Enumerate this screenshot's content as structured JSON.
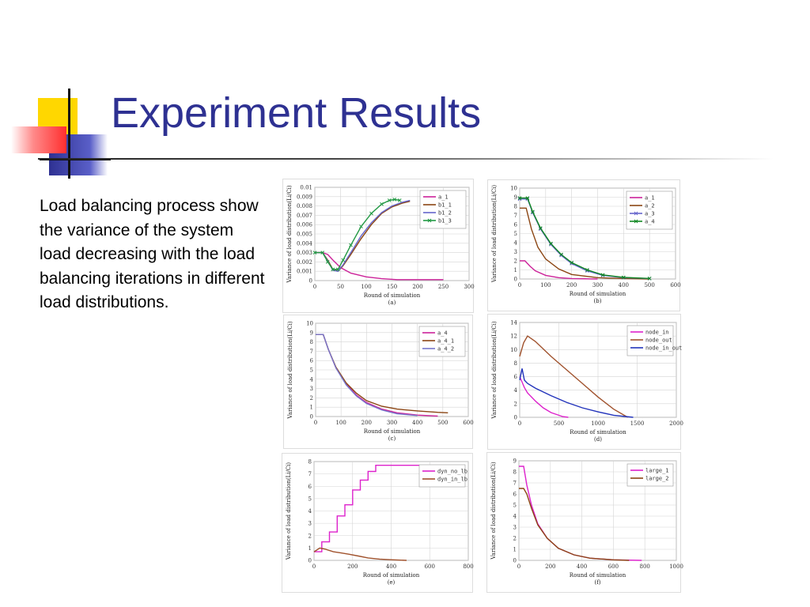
{
  "slide": {
    "title": "Experiment Results",
    "body": "Load balancing process show the variance of the system load decreasing with the load balancing iterations in different load distributions."
  },
  "colors": {
    "title": "#2e3192",
    "deco_yellow": "#ffd700",
    "deco_blue": "#2e3192",
    "deco_red": "#ff3b3b"
  },
  "chart_data": [
    {
      "type": "line",
      "label": "(a)",
      "xlabel": "Round of simulation",
      "ylabel": "Variance of load distribution(Li/Ci)",
      "xlim": [
        0,
        300
      ],
      "ylim": [
        0,
        0.01
      ],
      "xticks": [
        0,
        50,
        100,
        150,
        200,
        250,
        300
      ],
      "yticks": [
        0,
        0.001,
        0.002,
        0.003,
        0.004,
        0.005,
        0.006,
        0.007,
        0.008,
        0.009,
        0.01
      ],
      "ytick_labels": [
        "0",
        "0.001",
        "0.002",
        "0.003",
        "0.004",
        "0.005",
        "0.006",
        "0.007",
        "0.008",
        "0.009",
        "0.01"
      ],
      "grid": true,
      "legend_position": "top-right",
      "series": [
        {
          "name": "a_1",
          "color": "#cc2299",
          "marker": "none",
          "x": [
            0,
            15,
            25,
            35,
            50,
            70,
            100,
            130,
            160,
            200,
            250
          ],
          "y": [
            0.003,
            0.003,
            0.0028,
            0.0022,
            0.0014,
            0.0008,
            0.0004,
            0.0002,
            0.0001,
            0.0001,
            0.0001
          ]
        },
        {
          "name": "b1_1",
          "color": "#8b4513",
          "marker": "none",
          "x": [
            0,
            15,
            25,
            35,
            45,
            55,
            70,
            90,
            110,
            130,
            150,
            170,
            185
          ],
          "y": [
            0.003,
            0.003,
            0.0022,
            0.0012,
            0.001,
            0.0016,
            0.0028,
            0.0045,
            0.006,
            0.0072,
            0.0079,
            0.0083,
            0.0085
          ]
        },
        {
          "name": "b1_2",
          "color": "#6666cc",
          "marker": "none",
          "x": [
            0,
            15,
            25,
            35,
            45,
            55,
            70,
            90,
            110,
            130,
            150,
            170,
            185
          ],
          "y": [
            0.003,
            0.003,
            0.0021,
            0.0011,
            0.001,
            0.0017,
            0.003,
            0.0048,
            0.0062,
            0.0073,
            0.008,
            0.0084,
            0.0086
          ]
        },
        {
          "name": "b1_3",
          "color": "#229944",
          "marker": "x",
          "x": [
            0,
            15,
            25,
            35,
            45,
            55,
            70,
            90,
            110,
            130,
            145,
            155,
            165
          ],
          "y": [
            0.003,
            0.003,
            0.002,
            0.0012,
            0.0012,
            0.0022,
            0.0038,
            0.0058,
            0.0072,
            0.0082,
            0.0086,
            0.0087,
            0.0086
          ]
        }
      ]
    },
    {
      "type": "line",
      "label": "(b)",
      "xlabel": "Round of simulation",
      "ylabel": "Variance of load distribution(Li/Ci)",
      "xlim": [
        0,
        600
      ],
      "ylim": [
        0,
        10
      ],
      "xticks": [
        0,
        100,
        200,
        300,
        400,
        500,
        600
      ],
      "yticks": [
        0,
        1,
        2,
        3,
        4,
        5,
        6,
        7,
        8,
        9,
        10
      ],
      "grid": true,
      "legend_position": "top-right",
      "series": [
        {
          "name": "a_1",
          "color": "#cc2299",
          "marker": "none",
          "x": [
            0,
            20,
            40,
            60,
            100,
            150,
            200,
            300
          ],
          "y": [
            2,
            2,
            1.4,
            0.9,
            0.4,
            0.15,
            0.05,
            0
          ]
        },
        {
          "name": "a_2",
          "color": "#8b4513",
          "marker": "none",
          "x": [
            0,
            25,
            45,
            70,
            100,
            150,
            200,
            300,
            400,
            500
          ],
          "y": [
            7.8,
            7.8,
            5.5,
            3.5,
            2.2,
            1.1,
            0.5,
            0.15,
            0.05,
            0
          ]
        },
        {
          "name": "a_3",
          "color": "#6666cc",
          "marker": "x",
          "x": [
            0,
            30,
            50,
            80,
            120,
            160,
            200,
            260,
            320,
            400,
            500
          ],
          "y": [
            8.8,
            8.8,
            7.3,
            5.5,
            3.8,
            2.6,
            1.7,
            0.9,
            0.4,
            0.15,
            0.05
          ]
        },
        {
          "name": "a_4",
          "color": "#118822",
          "marker": "x",
          "x": [
            0,
            30,
            50,
            80,
            120,
            160,
            200,
            260,
            320,
            400,
            500
          ],
          "y": [
            8.9,
            8.9,
            7.4,
            5.6,
            3.9,
            2.7,
            1.8,
            1,
            0.45,
            0.18,
            0.06
          ]
        }
      ]
    },
    {
      "type": "line",
      "label": "(c)",
      "xlabel": "Round of simulation",
      "ylabel": "Variance of load distribution(Li/Ci)",
      "xlim": [
        0,
        600
      ],
      "ylim": [
        0,
        10
      ],
      "xticks": [
        0,
        100,
        200,
        300,
        400,
        500,
        600
      ],
      "yticks": [
        0,
        1,
        2,
        3,
        4,
        5,
        6,
        7,
        8,
        9,
        10
      ],
      "grid": true,
      "legend_position": "top-right",
      "series": [
        {
          "name": "a_4",
          "color": "#cc2299",
          "marker": "none",
          "x": [
            0,
            30,
            50,
            80,
            120,
            160,
            200,
            260,
            320,
            400,
            480
          ],
          "y": [
            8.8,
            8.8,
            7.2,
            5.2,
            3.5,
            2.3,
            1.5,
            0.8,
            0.4,
            0.15,
            0.05
          ]
        },
        {
          "name": "a_4_1",
          "color": "#8b4513",
          "marker": "none",
          "x": [
            0,
            30,
            50,
            80,
            120,
            160,
            200,
            260,
            320,
            400,
            480,
            520
          ],
          "y": [
            8.8,
            8.8,
            7.2,
            5.3,
            3.6,
            2.5,
            1.7,
            1.1,
            0.8,
            0.6,
            0.45,
            0.4
          ]
        },
        {
          "name": "a_4_2",
          "color": "#7777cc",
          "marker": "none",
          "x": [
            0,
            30,
            50,
            80,
            120,
            160,
            200,
            260,
            320,
            400
          ],
          "y": [
            8.8,
            8.8,
            7.2,
            5.2,
            3.4,
            2.2,
            1.4,
            0.7,
            0.3,
            0.1
          ]
        }
      ]
    },
    {
      "type": "line",
      "label": "(d)",
      "xlabel": "Round of simulation",
      "ylabel": "Variance of load distribution(Li/Ci)",
      "xlim": [
        0,
        2000
      ],
      "ylim": [
        0,
        14
      ],
      "xticks": [
        0,
        500,
        1000,
        1500,
        2000
      ],
      "yticks": [
        0,
        2,
        4,
        6,
        8,
        10,
        12,
        14
      ],
      "grid": true,
      "legend_position": "top-right",
      "series": [
        {
          "name": "node_in",
          "color": "#dd22cc",
          "marker": "none",
          "x": [
            0,
            30,
            60,
            100,
            200,
            300,
            400,
            550,
            620
          ],
          "y": [
            6,
            5.2,
            4.4,
            3.6,
            2.4,
            1.4,
            0.7,
            0.1,
            0
          ]
        },
        {
          "name": "node_out",
          "color": "#a0522d",
          "marker": "none",
          "x": [
            0,
            50,
            100,
            200,
            400,
            600,
            800,
            1000,
            1200,
            1380
          ],
          "y": [
            9,
            11,
            12,
            11.2,
            9,
            7,
            5,
            3,
            1.2,
            0
          ]
        },
        {
          "name": "node_in_out",
          "color": "#2233bb",
          "marker": "none",
          "x": [
            0,
            30,
            60,
            100,
            200,
            400,
            600,
            800,
            1000,
            1200,
            1450
          ],
          "y": [
            5.5,
            7.2,
            5.5,
            5,
            4.3,
            3.2,
            2.2,
            1.4,
            0.8,
            0.3,
            0
          ]
        }
      ]
    },
    {
      "type": "line",
      "label": "(e)",
      "xlabel": "Round of simulation",
      "ylabel": "Variance of load distribution(Li/Ci)",
      "xlim": [
        0,
        800
      ],
      "ylim": [
        0,
        8
      ],
      "xticks": [
        0,
        200,
        400,
        600,
        800
      ],
      "yticks": [
        0,
        1,
        2,
        3,
        4,
        5,
        6,
        7,
        8
      ],
      "grid": true,
      "legend_position": "top-right",
      "series": [
        {
          "name": "dyn_no_lb",
          "color": "#dd22cc",
          "marker": "none",
          "step": true,
          "x": [
            0,
            40,
            80,
            120,
            160,
            200,
            240,
            280,
            320,
            360,
            680
          ],
          "y": [
            0.7,
            1.5,
            2.3,
            3.6,
            4.5,
            5.7,
            6.5,
            7.2,
            7.7,
            7.7,
            7.7
          ]
        },
        {
          "name": "dyn_in_lb",
          "color": "#a0522d",
          "marker": "none",
          "x": [
            0,
            30,
            60,
            100,
            140,
            180,
            230,
            280,
            340,
            400,
            480
          ],
          "y": [
            0.7,
            1,
            0.9,
            0.7,
            0.6,
            0.5,
            0.35,
            0.2,
            0.1,
            0.05,
            0
          ]
        }
      ]
    },
    {
      "type": "line",
      "label": "(f)",
      "xlabel": "Round of simulation",
      "ylabel": "Variance of load distribution(Li/Ci)",
      "xlim": [
        0,
        1000
      ],
      "ylim": [
        0,
        9
      ],
      "xticks": [
        0,
        200,
        400,
        600,
        800,
        1000
      ],
      "yticks": [
        0,
        1,
        2,
        3,
        4,
        5,
        6,
        7,
        8,
        9
      ],
      "grid": true,
      "legend_position": "top-right",
      "series": [
        {
          "name": "large_1",
          "color": "#dd22cc",
          "marker": "none",
          "x": [
            0,
            30,
            50,
            80,
            120,
            180,
            250,
            350,
            450,
            600,
            780
          ],
          "y": [
            8.5,
            8.5,
            6.8,
            5,
            3.3,
            2,
            1.1,
            0.5,
            0.2,
            0.05,
            0
          ]
        },
        {
          "name": "large_2",
          "color": "#8b4513",
          "marker": "none",
          "x": [
            0,
            30,
            50,
            80,
            120,
            180,
            250,
            350,
            450,
            600,
            700
          ],
          "y": [
            6.5,
            6.5,
            6,
            4.7,
            3.2,
            2,
            1.1,
            0.5,
            0.2,
            0.05,
            0
          ]
        }
      ]
    }
  ]
}
